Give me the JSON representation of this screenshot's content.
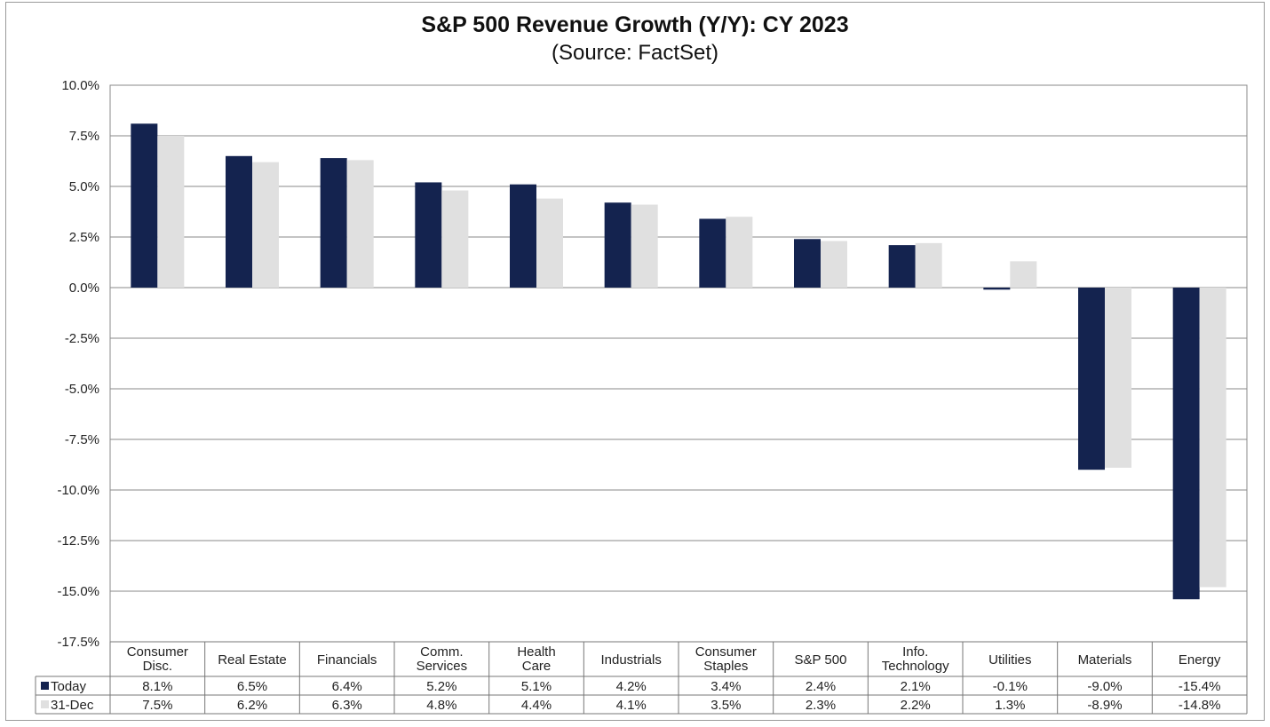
{
  "chart_data": {
    "type": "bar",
    "title": "S&P 500 Revenue Growth (Y/Y): CY 2023",
    "subtitle": "(Source: FactSet)",
    "xlabel": "",
    "ylabel": "",
    "ylim": [
      -17.5,
      10.0
    ],
    "ytick_step": 2.5,
    "ytick_labels": [
      "10.0%",
      "7.5%",
      "5.0%",
      "2.5%",
      "0.0%",
      "-2.5%",
      "-5.0%",
      "-7.5%",
      "-10.0%",
      "-12.5%",
      "-15.0%",
      "-17.5%"
    ],
    "grid": true,
    "legend_placement": "data-table-left",
    "categories": [
      [
        "Consumer",
        "Disc."
      ],
      [
        "Real Estate"
      ],
      [
        "Financials"
      ],
      [
        "Comm.",
        "Services"
      ],
      [
        "Health",
        "Care"
      ],
      [
        "Industrials"
      ],
      [
        "Consumer",
        "Staples"
      ],
      [
        "S&P 500"
      ],
      [
        "Info.",
        "Technology"
      ],
      [
        "Utilities"
      ],
      [
        "Materials"
      ],
      [
        "Energy"
      ]
    ],
    "series": [
      {
        "name": "Today",
        "color": "#14234f",
        "values": [
          8.1,
          6.5,
          6.4,
          5.2,
          5.1,
          4.2,
          3.4,
          2.4,
          2.1,
          -0.1,
          -9.0,
          -15.4
        ],
        "labels": [
          "8.1%",
          "6.5%",
          "6.4%",
          "5.2%",
          "5.1%",
          "4.2%",
          "3.4%",
          "2.4%",
          "2.1%",
          "-0.1%",
          "-9.0%",
          "-15.4%"
        ]
      },
      {
        "name": "31-Dec",
        "color": "#e0e0e0",
        "values": [
          7.5,
          6.2,
          6.3,
          4.8,
          4.4,
          4.1,
          3.5,
          2.3,
          2.2,
          1.3,
          -8.9,
          -14.8
        ],
        "labels": [
          "7.5%",
          "6.2%",
          "6.3%",
          "4.8%",
          "4.4%",
          "4.1%",
          "3.5%",
          "2.3%",
          "2.2%",
          "1.3%",
          "-8.9%",
          "-14.8%"
        ]
      }
    ]
  }
}
